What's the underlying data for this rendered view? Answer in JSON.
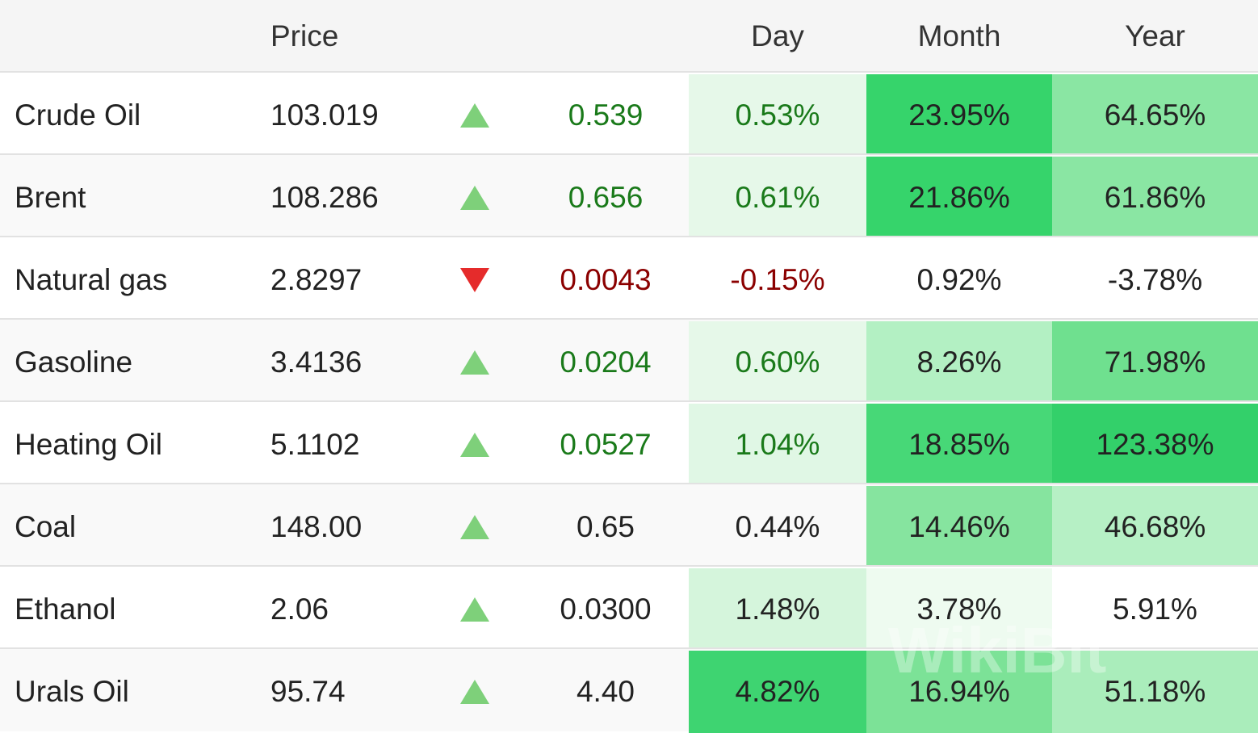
{
  "table": {
    "header": [
      "Price",
      "Day",
      "Month",
      "Year"
    ],
    "rows": [
      {
        "name": "Crude Oil",
        "price": "103.019",
        "arrow": "up",
        "change": "0.539",
        "day": "0.53%",
        "month": "23.95%",
        "year": "64.65%",
        "tone": "#1a7a1a",
        "shade": [
          "#e6f8e9",
          "#36d46b",
          "#8ae6a3"
        ]
      },
      {
        "name": "Brent",
        "price": "108.286",
        "arrow": "up",
        "change": "0.656",
        "day": "0.61%",
        "month": "21.86%",
        "year": "61.86%",
        "tone": "#1a7a1a",
        "shade": [
          "#e6f8e9",
          "#36d46b",
          "#8ae6a3"
        ]
      },
      {
        "name": "Natural gas",
        "price": "2.8297",
        "arrow": "down",
        "change": "0.0043",
        "day": "-0.15%",
        "month": "0.92%",
        "year": "-3.78%",
        "tone": "#8b0000",
        "shade": [
          null,
          null,
          null
        ]
      },
      {
        "name": "Gasoline",
        "price": "3.4136",
        "arrow": "up",
        "change": "0.0204",
        "day": "0.60%",
        "month": "8.26%",
        "year": "71.98%",
        "tone": "#1a7a1a",
        "shade": [
          "#e6f8e9",
          "#b3f0c3",
          "#6fe08f"
        ]
      },
      {
        "name": "Heating Oil",
        "price": "5.1102",
        "arrow": "up",
        "change": "0.0527",
        "day": "1.04%",
        "month": "18.85%",
        "year": "123.38%",
        "tone": "#1a7a1a",
        "shade": [
          "#e0f7e5",
          "#47d877",
          "#33d06a"
        ]
      },
      {
        "name": "Coal",
        "price": "148.00",
        "arrow": "up",
        "change": "0.65",
        "day": "0.44%",
        "month": "14.46%",
        "year": "46.68%",
        "tone": "#222222",
        "shade": [
          null,
          "#86e49f",
          "#b6f0c5"
        ]
      },
      {
        "name": "Ethanol",
        "price": "2.06",
        "arrow": "up",
        "change": "0.0300",
        "day": "1.48%",
        "month": "3.78%",
        "year": "5.91%",
        "tone": "#222222",
        "shade": [
          "#d5f5dc",
          "#eefbf0",
          null
        ]
      },
      {
        "name": "Urals Oil",
        "price": "95.74",
        "arrow": "up",
        "change": "4.40",
        "day": "4.82%",
        "month": "16.94%",
        "year": "51.18%",
        "tone": "#222222",
        "shade": [
          "#3ed471",
          "#7ce297",
          "#aaedbb"
        ]
      }
    ],
    "watermark": "WikiBit"
  }
}
